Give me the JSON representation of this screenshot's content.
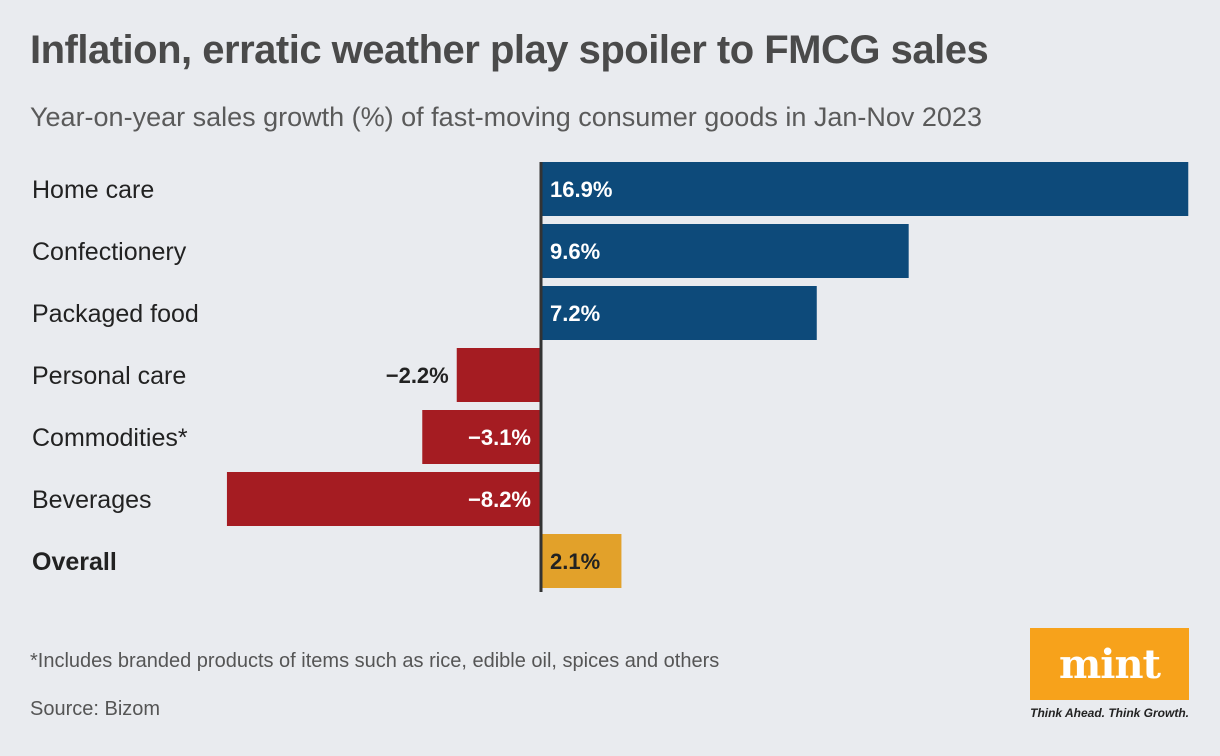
{
  "header": {
    "title": "Inflation, erratic weather play spoiler to FMCG sales",
    "subtitle": "Year-on-year sales growth (%) of fast-moving consumer goods in Jan-Nov 2023"
  },
  "chart_data": {
    "type": "bar",
    "orientation": "horizontal",
    "categories": [
      "Home care",
      "Confectionery",
      "Packaged food",
      "Personal care",
      "Commodities*",
      "Beverages",
      "Overall"
    ],
    "values": [
      16.9,
      9.6,
      7.2,
      -2.2,
      -3.1,
      -8.2,
      2.1
    ],
    "value_labels": [
      "16.9%",
      "9.6%",
      "7.2%",
      "−2.2%",
      "−3.1%",
      "−8.2%",
      "2.1%"
    ],
    "bold_categories": [
      "Overall"
    ],
    "xlim": [
      -8.2,
      16.9
    ],
    "grid": false,
    "legend": "none",
    "colors": {
      "positive": "#0d4a7a",
      "negative": "#a51c22",
      "overall": "#e2a12a",
      "axis": "#333333"
    }
  },
  "footer": {
    "footnote": "*Includes branded products of items such as rice, edible oil, spices and others",
    "source": "Source: Bizom"
  },
  "logo": {
    "text": "mint",
    "tagline": "Think Ahead. Think Growth.",
    "color": "#f7a21b"
  }
}
